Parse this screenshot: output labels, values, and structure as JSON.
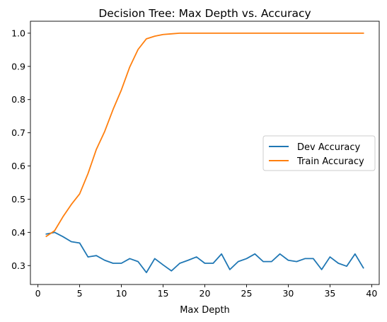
{
  "chart_data": {
    "type": "line",
    "title": "Decision Tree: Max Depth vs. Accuracy",
    "xlabel": "Max Depth",
    "ylabel": "",
    "xlim": [
      -0.9,
      40.9
    ],
    "ylim": [
      0.243,
      1.036
    ],
    "xticks": [
      0,
      5,
      10,
      15,
      20,
      25,
      30,
      35,
      40
    ],
    "yticks": [
      0.3,
      0.4,
      0.5,
      0.6,
      0.7,
      0.8,
      0.9,
      1.0
    ],
    "xtick_labels": [
      "0",
      "5",
      "10",
      "15",
      "20",
      "25",
      "30",
      "35",
      "40"
    ],
    "ytick_labels": [
      "0.3",
      "0.4",
      "0.5",
      "0.6",
      "0.7",
      "0.8",
      "0.9",
      "1.0"
    ],
    "grid": false,
    "legend_position": "center-right",
    "x": [
      1,
      2,
      3,
      4,
      5,
      6,
      7,
      8,
      9,
      10,
      11,
      12,
      13,
      14,
      15,
      16,
      17,
      18,
      19,
      20,
      21,
      22,
      23,
      24,
      25,
      26,
      27,
      28,
      29,
      30,
      31,
      32,
      33,
      34,
      35,
      36,
      37,
      38,
      39
    ],
    "series": [
      {
        "name": "Dev Accuracy",
        "color": "#1f77b4",
        "values": [
          0.395,
          0.4,
          0.387,
          0.372,
          0.368,
          0.326,
          0.33,
          0.316,
          0.307,
          0.307,
          0.321,
          0.312,
          0.279,
          0.321,
          0.302,
          0.284,
          0.307,
          0.316,
          0.326,
          0.307,
          0.307,
          0.335,
          0.288,
          0.312,
          0.321,
          0.335,
          0.312,
          0.312,
          0.335,
          0.316,
          0.312,
          0.321,
          0.321,
          0.288,
          0.326,
          0.307,
          0.298,
          0.335,
          0.293
        ]
      },
      {
        "name": "Train Accuracy",
        "color": "#ff7f0e",
        "values": [
          0.388,
          0.405,
          0.447,
          0.484,
          0.516,
          0.577,
          0.65,
          0.704,
          0.77,
          0.829,
          0.898,
          0.951,
          0.983,
          0.991,
          0.996,
          0.998,
          1.0,
          1.0,
          1.0,
          1.0,
          1.0,
          1.0,
          1.0,
          1.0,
          1.0,
          1.0,
          1.0,
          1.0,
          1.0,
          1.0,
          1.0,
          1.0,
          1.0,
          1.0,
          1.0,
          1.0,
          1.0,
          1.0,
          1.0
        ]
      }
    ]
  }
}
